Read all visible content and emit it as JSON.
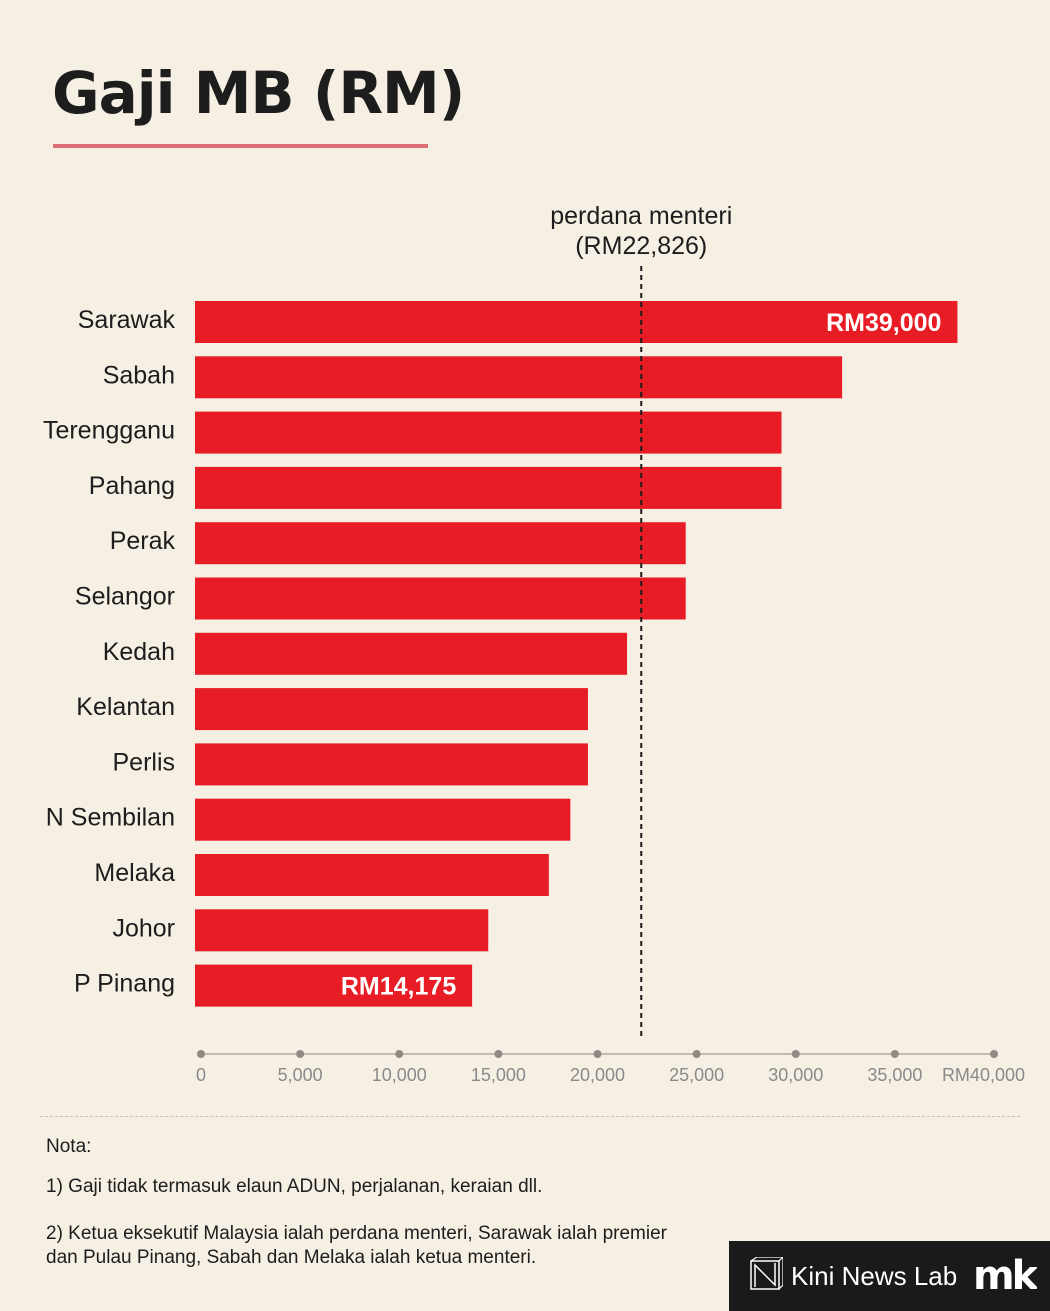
{
  "title": "Gaji MB (RM)",
  "chart_data": {
    "type": "bar",
    "orientation": "horizontal",
    "categories": [
      "Sarawak",
      "Sabah",
      "Terengganu",
      "Pahang",
      "Perak",
      "Selangor",
      "Kedah",
      "Kelantan",
      "Perlis",
      "N Sembilan",
      "Melaka",
      "Johor",
      "P Pinang"
    ],
    "values": [
      39000,
      33100,
      30000,
      30000,
      25100,
      25100,
      22100,
      20100,
      20100,
      19200,
      18100,
      15000,
      14175
    ],
    "data_labels": [
      {
        "category": "Sarawak",
        "text": "RM39,000"
      },
      {
        "category": "P Pinang",
        "text": "RM14,175"
      }
    ],
    "reference_line": {
      "value": 22826,
      "label_line1": "perdana menteri",
      "label_line2": "(RM22,826)",
      "style": "dashed"
    },
    "xlim": [
      0,
      40000
    ],
    "x_ticks": [
      0,
      5000,
      10000,
      15000,
      20000,
      25000,
      30000,
      35000,
      40000
    ],
    "x_tick_labels": [
      "0",
      "5,000",
      "10,000",
      "15,000",
      "20,000",
      "25,000",
      "30,000",
      "35,000",
      "RM40,000"
    ],
    "bar_color": "#e81c25",
    "grid": false
  },
  "notes": {
    "title": "Nota:",
    "items": [
      "1) Gaji tidak termasuk elaun ADUN, perjalanan, keraian dll.",
      "2) Ketua eksekutif Malaysia ialah perdana menteri, Sarawak ialah premier dan Pulau Pinang, Sabah dan Melaka ialah ketua menteri."
    ]
  },
  "branding": {
    "name": "Kini News Lab",
    "logo_text": "mk"
  }
}
